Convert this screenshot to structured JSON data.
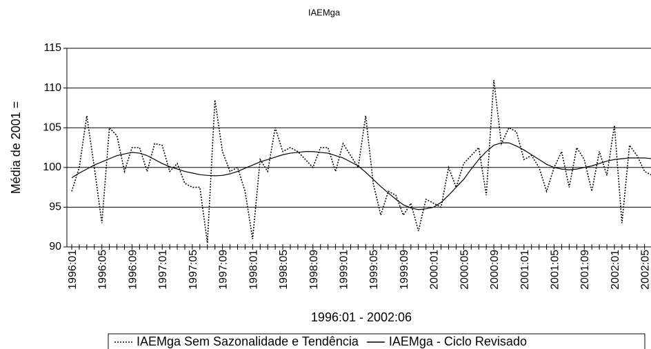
{
  "chart_data": {
    "type": "line",
    "title": "IAEMga",
    "y_label": "Média de 2001 =",
    "x_label": "1996:01 - 2002:06",
    "categories": [
      "1996:01",
      null,
      null,
      null,
      "1996:05",
      null,
      null,
      null,
      "1996:09",
      null,
      null,
      null,
      "1997:01",
      null,
      null,
      null,
      "1997:05",
      null,
      null,
      null,
      "1997:09",
      null,
      null,
      null,
      "1998:01",
      null,
      null,
      null,
      "1998:05",
      null,
      null,
      null,
      "1998:09",
      null,
      null,
      null,
      "1999:01",
      null,
      null,
      null,
      "1999:05",
      null,
      null,
      null,
      "1999:09",
      null,
      null,
      null,
      "2000:01",
      null,
      null,
      null,
      "2000:05",
      null,
      null,
      null,
      "2000:09",
      null,
      null,
      null,
      "2001:01",
      null,
      null,
      null,
      "2001:05",
      null,
      null,
      null,
      "2001:09",
      null,
      null,
      null,
      "2002:01",
      null,
      null,
      null,
      "2002:05",
      null
    ],
    "series": [
      {
        "name": "IAEMga Sem Sazonalidade e Tendência",
        "color": "#000000",
        "line_style": "dotted",
        "values": [
          97,
          100,
          106.5,
          100,
          93,
          105,
          104,
          99.5,
          102.5,
          102.5,
          99.5,
          103,
          102.8,
          99.5,
          100.5,
          98,
          97.5,
          97.5,
          90.5,
          108.5,
          102,
          99.5,
          100,
          97,
          91,
          101,
          99.5,
          105,
          102,
          102.5,
          102,
          101,
          100,
          102.5,
          102.5,
          99.5,
          103,
          101.5,
          100,
          106.5,
          98,
          94,
          97,
          96.5,
          94,
          95.5,
          92,
          96,
          95.5,
          95,
          100,
          97.5,
          100.5,
          101.5,
          102.5,
          96.5,
          111,
          103,
          105,
          104.5,
          101,
          101.5,
          100,
          97,
          100,
          102,
          97.5,
          102.5,
          101,
          97,
          102,
          99,
          105.3,
          93,
          102.8,
          101.5,
          99.5,
          99
        ]
      },
      {
        "name": "IAEMga - Ciclo Revisado",
        "color": "#000000",
        "line_style": "solid",
        "values": [
          98.7,
          99.3,
          99.8,
          100.3,
          100.7,
          101.1,
          101.5,
          101.7,
          101.9,
          101.8,
          101.5,
          101.0,
          100.5,
          100.1,
          99.8,
          99.5,
          99.3,
          99.1,
          99.0,
          98.95,
          99.0,
          99.2,
          99.5,
          99.9,
          100.3,
          100.7,
          101.0,
          101.3,
          101.6,
          101.8,
          101.9,
          102.0,
          102.0,
          101.9,
          101.8,
          101.5,
          101.2,
          100.7,
          100.2,
          99.4,
          98.5,
          97.6,
          96.8,
          96.0,
          95.3,
          94.9,
          94.7,
          94.8,
          95.0,
          95.6,
          96.5,
          97.5,
          98.5,
          99.8,
          101.0,
          102.0,
          102.8,
          103.1,
          103.1,
          102.7,
          102.2,
          101.6,
          101.0,
          100.4,
          100.0,
          99.8,
          99.7,
          99.8,
          100.0,
          100.2,
          100.5,
          100.8,
          101.0,
          101.1,
          101.2,
          101.2,
          101.2,
          101.1
        ]
      }
    ],
    "ylim": [
      90,
      115
    ],
    "yticks": [
      90,
      95,
      100,
      105,
      110,
      115
    ],
    "grid": true,
    "legend": "bottom"
  }
}
